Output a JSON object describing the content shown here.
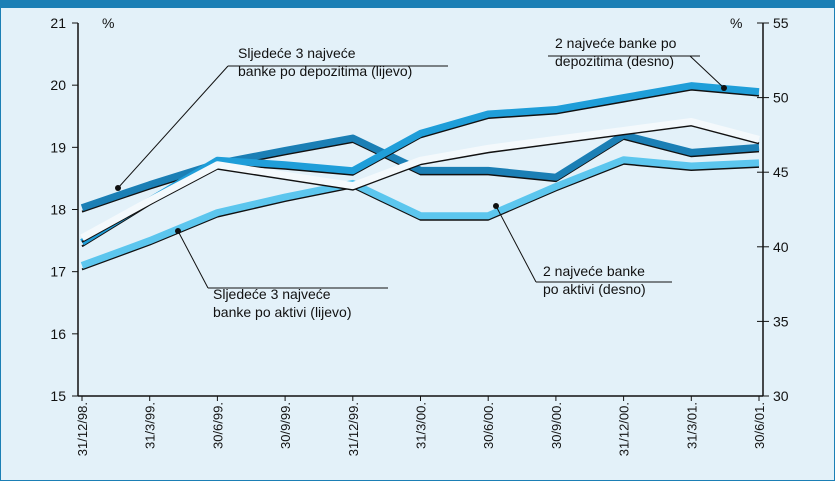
{
  "chart_data": {
    "type": "line",
    "y_unit_label": "%",
    "y2_unit_label": "%",
    "categories": [
      "31/12/98.",
      "31/3/99.",
      "30/6/99.",
      "30/9/99.",
      "31/12/99.",
      "31/3/00.",
      "30/6/00.",
      "30/9/00.",
      "31/12/00.",
      "31/3/01.",
      "30/6/01."
    ],
    "ylim": [
      15,
      21
    ],
    "yticks": [
      15,
      16,
      17,
      18,
      19,
      20,
      21
    ],
    "y2lim": [
      30,
      55
    ],
    "y2ticks": [
      30,
      35,
      40,
      45,
      50,
      55
    ],
    "series": [
      {
        "name": "Sljedeće 3 najveće banke po depozitima (lijevo)",
        "color": "#1b7fb5",
        "axis": "y",
        "values": [
          18.03,
          18.4,
          18.74,
          18.95,
          19.15,
          18.63,
          18.63,
          18.52,
          19.2,
          18.92,
          19.0
        ]
      },
      {
        "name": "2 najveće banke po depozitima (desno)",
        "color": "#1f9ed9",
        "axis": "y2",
        "values": [
          40.3,
          43.1,
          45.8,
          45.5,
          45.1,
          47.6,
          48.9,
          49.2,
          50.0,
          50.8,
          50.4
        ]
      },
      {
        "name": "Sljedeće 3 najveće banke po aktivi (lijevo)",
        "color": "#5cc6ee",
        "axis": "y",
        "values": [
          17.1,
          17.5,
          17.95,
          18.2,
          18.42,
          17.9,
          17.9,
          18.37,
          18.8,
          18.7,
          18.75
        ]
      },
      {
        "name": "2 najveće banke po aktivi (desno)",
        "color": "#f4f9fc",
        "axis": "y2",
        "values": [
          40.6,
          43.1,
          45.5,
          44.8,
          44.1,
          45.8,
          46.6,
          47.2,
          47.8,
          48.4,
          47.2
        ]
      }
    ],
    "annotations": [
      {
        "lines": [
          "Sljedeće 3 najveće",
          "banke po depozitima (lijevo)"
        ]
      },
      {
        "lines": [
          "2 najveće banke po",
          "depozitima (desno)"
        ]
      },
      {
        "lines": [
          "2 najveće banke",
          "po aktivi (desno)"
        ]
      },
      {
        "lines": [
          "Sljedeće 3 najveće",
          "banke po aktivi (lijevo)"
        ]
      }
    ]
  }
}
